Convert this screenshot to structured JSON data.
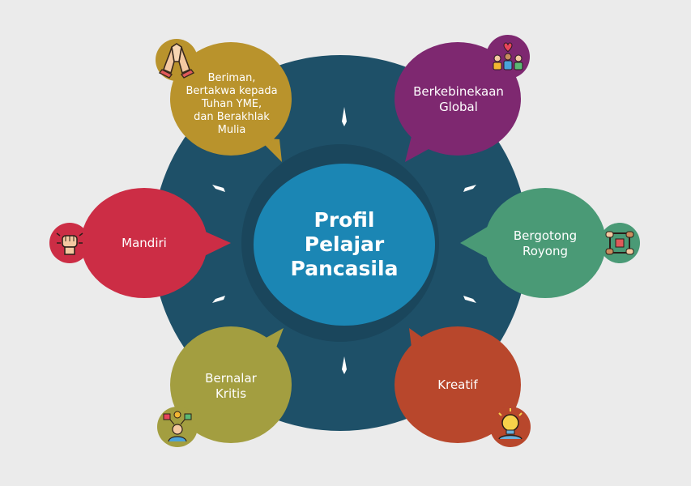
{
  "center": {
    "lines": [
      "Profil",
      "Pelajar",
      "Pancasila"
    ]
  },
  "colors": {
    "background": "#ebebeb",
    "ring": "#1e5068",
    "ring_inner": "#1a465c",
    "center": "#1b86b4",
    "beriman": "#b9932c",
    "kebinekaan": "#7e2870",
    "gotong_royong": "#4a9a76",
    "kreatif": "#b8472c",
    "kritis": "#a39e40",
    "mandiri": "#cc2d45"
  },
  "bubbles": {
    "beriman": {
      "lines": [
        "Beriman,",
        "Bertakwa kepada",
        "Tuhan YME,",
        "dan Berakhlak",
        "Mulia"
      ],
      "icon": "praying-hands-icon"
    },
    "kebinekaan": {
      "lines": [
        "Berkebinekaan",
        "Global"
      ],
      "icon": "diverse-people-icon"
    },
    "gotong_royong": {
      "lines": [
        "Bergotong",
        "Royong"
      ],
      "icon": "joined-hands-icon"
    },
    "kreatif": {
      "lines": [
        "Kreatif"
      ],
      "icon": "lightbulb-person-icon"
    },
    "kritis": {
      "lines": [
        "Bernalar",
        "Kritis"
      ],
      "icon": "thinking-person-icon"
    },
    "mandiri": {
      "lines": [
        "Mandiri"
      ],
      "icon": "raised-fist-icon"
    }
  }
}
